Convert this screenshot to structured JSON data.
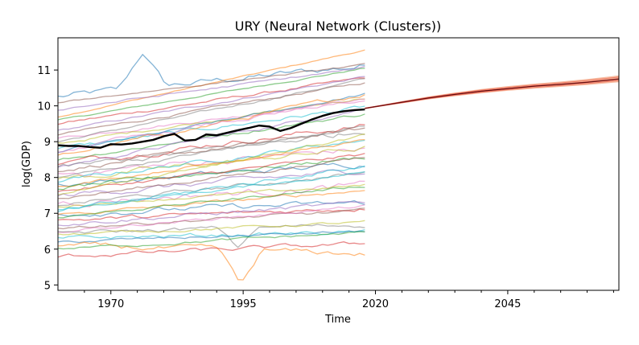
{
  "chart_data": {
    "type": "line",
    "title": "URY (Neural Network (Clusters))",
    "xlabel": "Time",
    "ylabel": "log(GDP)",
    "xlim": [
      1960,
      2066
    ],
    "ylim": [
      4.85,
      11.9
    ],
    "xticks": [
      1970,
      1995,
      2020,
      2045
    ],
    "yticks": [
      5,
      6,
      7,
      8,
      9,
      10,
      11
    ],
    "grid": false,
    "colors": {
      "focus_history": "#000000",
      "forecast_mean": "#d62728",
      "forecast_band": "#f4a582"
    },
    "cluster_palette": [
      "#1f77b4",
      "#ff7f0e",
      "#2ca02c",
      "#d62728",
      "#9467bd",
      "#8c564b",
      "#e377c2",
      "#7f7f7f",
      "#bcbd22",
      "#17becf"
    ],
    "focus_series": {
      "name": "URY",
      "x": [
        1960,
        1962,
        1964,
        1966,
        1968,
        1970,
        1972,
        1974,
        1976,
        1978,
        1980,
        1982,
        1984,
        1986,
        1988,
        1990,
        1992,
        1994,
        1996,
        1998,
        2000,
        2002,
        2004,
        2006,
        2008,
        2010,
        2012,
        2014,
        2016,
        2018
      ],
      "values": [
        8.9,
        8.88,
        8.88,
        8.85,
        8.83,
        8.93,
        8.92,
        8.95,
        9.0,
        9.05,
        9.15,
        9.22,
        9.03,
        9.05,
        9.2,
        9.18,
        9.25,
        9.32,
        9.38,
        9.45,
        9.42,
        9.3,
        9.38,
        9.5,
        9.62,
        9.72,
        9.8,
        9.85,
        9.88,
        9.9
      ]
    },
    "forecast": {
      "x": [
        2018,
        2025,
        2030,
        2035,
        2040,
        2045,
        2050,
        2055,
        2060,
        2066
      ],
      "mean": [
        9.93,
        10.1,
        10.22,
        10.32,
        10.41,
        10.48,
        10.55,
        10.6,
        10.66,
        10.75
      ],
      "lower": [
        9.92,
        10.07,
        10.18,
        10.27,
        10.35,
        10.42,
        10.48,
        10.53,
        10.58,
        10.66
      ],
      "upper": [
        9.94,
        10.13,
        10.26,
        10.37,
        10.47,
        10.55,
        10.62,
        10.68,
        10.75,
        10.85
      ]
    },
    "cluster_series": [
      {
        "start": 10.25,
        "trend": 0.015,
        "amp": 0.25,
        "extra": [
          [
            1972,
            1980,
            1.0
          ]
        ]
      },
      {
        "start": 9.7,
        "trend": 0.032,
        "amp": 0.05
      },
      {
        "start": 9.6,
        "trend": 0.025,
        "amp": 0.05
      },
      {
        "start": 9.5,
        "trend": 0.022,
        "amp": 0.1
      },
      {
        "start": 9.3,
        "trend": 0.026,
        "amp": 0.08
      },
      {
        "start": 9.2,
        "trend": 0.025,
        "amp": 0.08
      },
      {
        "start": 9.1,
        "trend": 0.018,
        "amp": 0.1
      },
      {
        "start": 9.0,
        "trend": 0.03,
        "amp": 0.08
      },
      {
        "start": 8.95,
        "trend": 0.022,
        "amp": 0.1
      },
      {
        "start": 8.8,
        "trend": 0.02,
        "amp": 0.15
      },
      {
        "start": 8.7,
        "trend": 0.028,
        "amp": 0.1
      },
      {
        "start": 8.6,
        "trend": 0.03,
        "amp": 0.15
      },
      {
        "start": 8.5,
        "trend": 0.022,
        "amp": 0.12
      },
      {
        "start": 8.4,
        "trend": 0.018,
        "amp": 0.2
      },
      {
        "start": 8.3,
        "trend": 0.028,
        "amp": 0.12
      },
      {
        "start": 8.2,
        "trend": 0.02,
        "amp": 0.15
      },
      {
        "start": 8.1,
        "trend": 0.012,
        "amp": 0.25
      },
      {
        "start": 8.0,
        "trend": 0.025,
        "amp": 0.1
      },
      {
        "start": 7.95,
        "trend": 0.015,
        "amp": 0.2
      },
      {
        "start": 7.9,
        "trend": 0.02,
        "amp": 0.15
      },
      {
        "start": 7.8,
        "trend": 0.01,
        "amp": 0.2
      },
      {
        "start": 7.75,
        "trend": 0.022,
        "amp": 0.1
      },
      {
        "start": 7.7,
        "trend": 0.015,
        "amp": 0.15
      },
      {
        "start": 7.6,
        "trend": 0.018,
        "amp": 0.12
      },
      {
        "start": 7.5,
        "trend": 0.012,
        "amp": 0.2
      },
      {
        "start": 7.4,
        "trend": 0.02,
        "amp": 0.12
      },
      {
        "start": 7.3,
        "trend": 0.008,
        "amp": 0.25
      },
      {
        "start": 7.25,
        "trend": 0.015,
        "amp": 0.15
      },
      {
        "start": 7.2,
        "trend": 0.01,
        "amp": 0.1
      },
      {
        "start": 7.1,
        "trend": 0.018,
        "amp": 0.1
      },
      {
        "start": 7.0,
        "trend": 0.005,
        "amp": 0.2
      },
      {
        "start": 6.95,
        "trend": 0.012,
        "amp": 0.12
      },
      {
        "start": 6.9,
        "trend": 0.015,
        "amp": 0.1
      },
      {
        "start": 6.8,
        "trend": 0.006,
        "amp": 0.15
      },
      {
        "start": 6.7,
        "trend": 0.01,
        "amp": 0.15
      },
      {
        "start": 6.6,
        "trend": 0.008,
        "amp": 0.12
      },
      {
        "start": 6.5,
        "trend": 0.012,
        "amp": 0.1
      },
      {
        "start": 6.45,
        "trend": 0.004,
        "amp": 0.15,
        "extra": [
          [
            1991,
            1997,
            -0.55
          ]
        ]
      },
      {
        "start": 6.4,
        "trend": 0.006,
        "amp": 0.1
      },
      {
        "start": 6.3,
        "trend": 0.003,
        "amp": 0.15
      },
      {
        "start": 6.2,
        "trend": 0.005,
        "amp": 0.1
      },
      {
        "start": 6.1,
        "trend": -0.004,
        "amp": 0.2,
        "extra": [
          [
            1991,
            1998,
            -1.0
          ]
        ]
      },
      {
        "start": 6.0,
        "trend": 0.008,
        "amp": 0.1
      },
      {
        "start": 5.8,
        "trend": 0.006,
        "amp": 0.15
      },
      {
        "start": 9.9,
        "trend": 0.02,
        "amp": 0.08
      },
      {
        "start": 10.1,
        "trend": 0.018,
        "amp": 0.06
      },
      {
        "start": 8.75,
        "trend": 0.025,
        "amp": 0.15
      },
      {
        "start": 8.25,
        "trend": 0.018,
        "amp": 0.22
      },
      {
        "start": 7.55,
        "trend": 0.028,
        "amp": 0.12
      },
      {
        "start": 7.05,
        "trend": 0.022,
        "amp": 0.15
      }
    ]
  }
}
